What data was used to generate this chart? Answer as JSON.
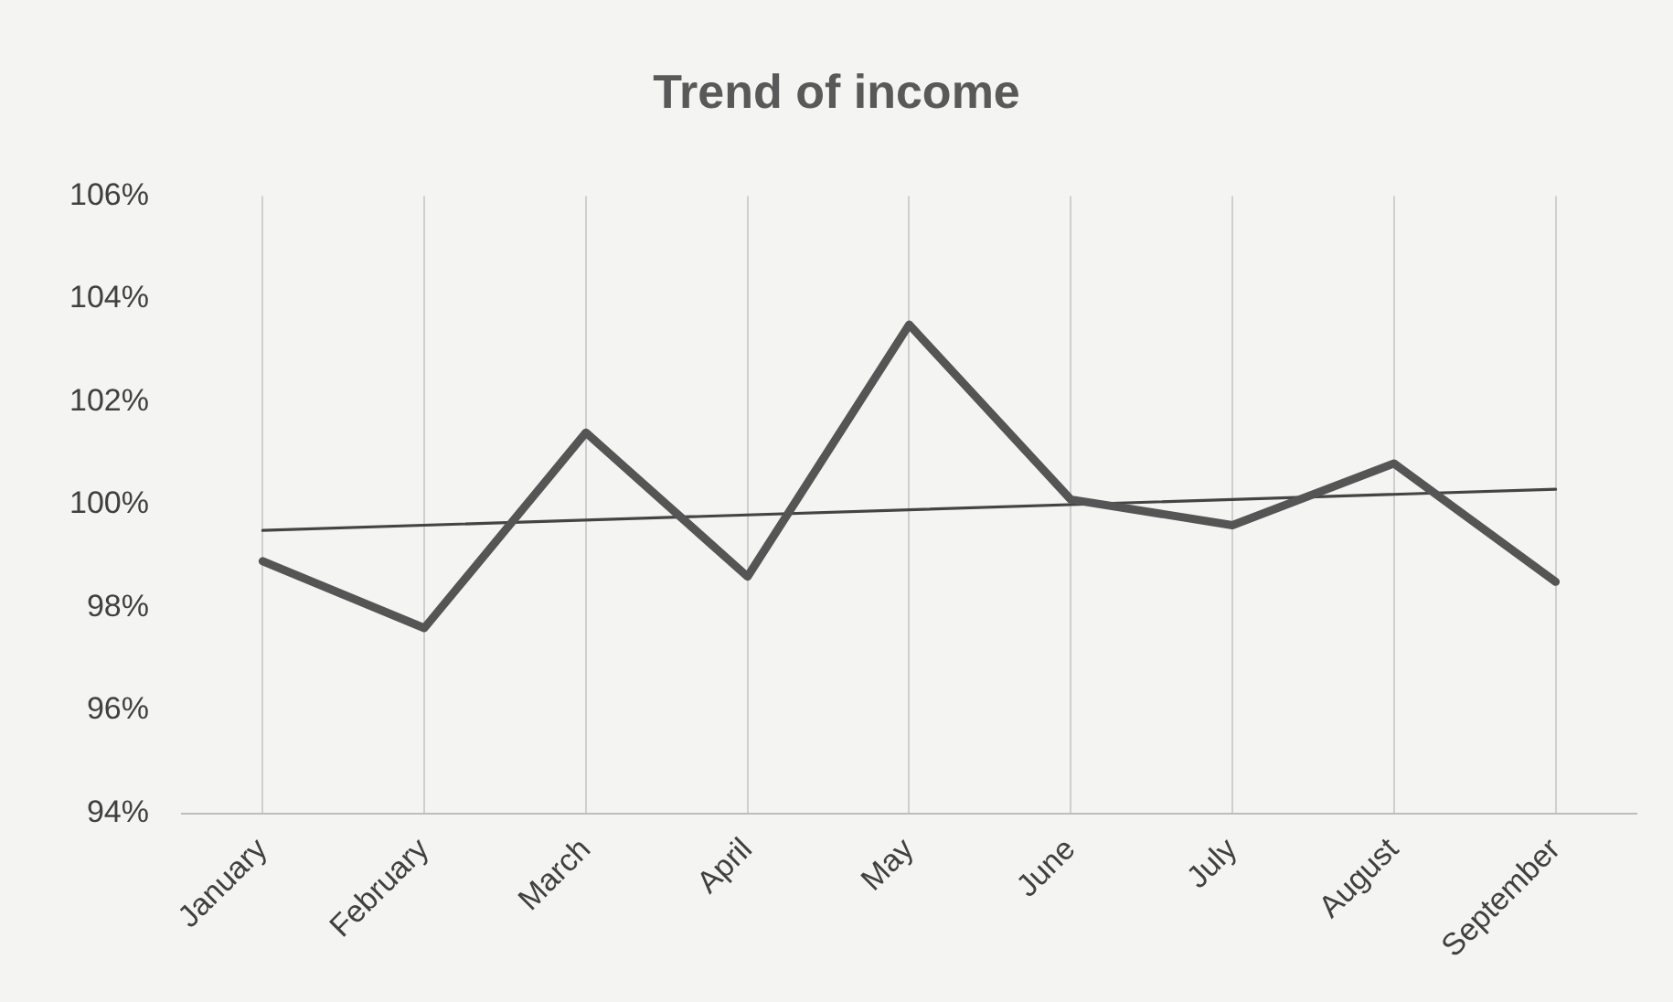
{
  "chart_data": {
    "type": "line",
    "title": "Trend of income",
    "categories": [
      "January",
      "February",
      "March",
      "April",
      "May",
      "June",
      "July",
      "August",
      "September"
    ],
    "series": [
      {
        "name": null,
        "color": "#555555",
        "values": [
          98.9,
          97.6,
          101.4,
          98.6,
          103.5,
          100.1,
          99.6,
          100.8,
          98.5
        ]
      },
      {
        "type": "line",
        "color": "#444444",
        "x": [
          "January",
          "September"
        ],
        "values": [
          99.5,
          100.3
        ]
      }
    ],
    "ylim": [
      94,
      106
    ],
    "yticks": [
      {
        "value": 94,
        "label": "94%"
      },
      {
        "value": 96,
        "label": "96%"
      },
      {
        "value": 98,
        "label": "98%"
      },
      {
        "value": 100,
        "label": "100%"
      },
      {
        "value": 102,
        "label": "102%"
      },
      {
        "value": 104,
        "label": "104%"
      },
      {
        "value": 106,
        "label": "106%"
      }
    ],
    "grid": "x",
    "legend": false,
    "marker": "none",
    "line_style": "solid"
  }
}
